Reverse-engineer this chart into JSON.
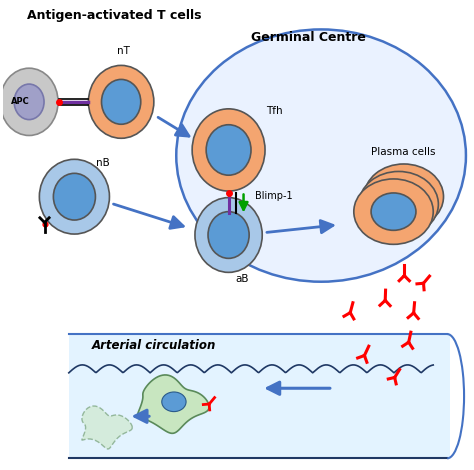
{
  "title": "Antigen-activated T cells",
  "germinal_centre_label": "Germinal Centre",
  "plasma_cells_label": "Plasma cells",
  "arterial_label": "Arterial circulation",
  "blimp1_label": "Blimp-1",
  "tfh_label": "Tfh",
  "nT_label": "nT",
  "nB_label": "nB",
  "aB_label": "aB",
  "APC_label": "APC",
  "bg_color": "#ffffff",
  "cell_salmon": "#F4A570",
  "cell_blue_dark": "#5B9BD5",
  "cell_blue_light": "#A8C8E8",
  "cell_gray": "#C8C8C8",
  "cell_gray_inner": "#A0A0C8",
  "germinal_fill": "#EAF2FF",
  "germinal_edge": "#4472C4",
  "artery_fill": "#DCF0FF",
  "artery_edge": "#4472C4",
  "arrow_blue": "#4472C4",
  "green_color": "#00A000",
  "purple_color": "#7030A0",
  "red_color": "#FF0000",
  "black_color": "#000000",
  "cell_green_light": "#C8E6C0",
  "vessel_wall": "#1F3864",
  "green_edge": "#5A8A5A"
}
